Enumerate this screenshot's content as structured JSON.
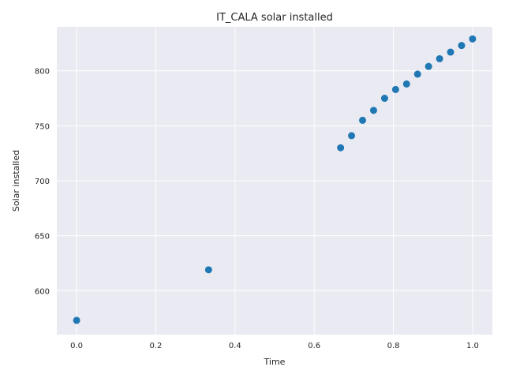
{
  "chart_data": {
    "type": "scatter",
    "title": "IT_CALA solar installed",
    "xlabel": "Time",
    "ylabel": "Solar installed",
    "xlim": [
      -0.05,
      1.05
    ],
    "ylim": [
      560,
      840
    ],
    "xticks": [
      0.0,
      0.2,
      0.4,
      0.6,
      0.8,
      1.0
    ],
    "xtick_labels": [
      "0.0",
      "0.2",
      "0.4",
      "0.6",
      "0.8",
      "1.0"
    ],
    "yticks": [
      600,
      650,
      700,
      750,
      800
    ],
    "ytick_labels": [
      "600",
      "650",
      "700",
      "750",
      "800"
    ],
    "grid": true,
    "colors": {
      "background": "#eaeaf2",
      "grid": "#ffffff",
      "marker": "#1f77b4"
    },
    "x": [
      0.0,
      0.3333,
      0.6667,
      0.6944,
      0.7222,
      0.75,
      0.7778,
      0.8056,
      0.8333,
      0.8611,
      0.8889,
      0.9167,
      0.9444,
      0.9722,
      1.0
    ],
    "y": [
      573,
      619,
      730,
      741,
      755,
      764,
      775,
      783,
      788,
      797,
      804,
      811,
      817,
      823,
      829
    ]
  }
}
